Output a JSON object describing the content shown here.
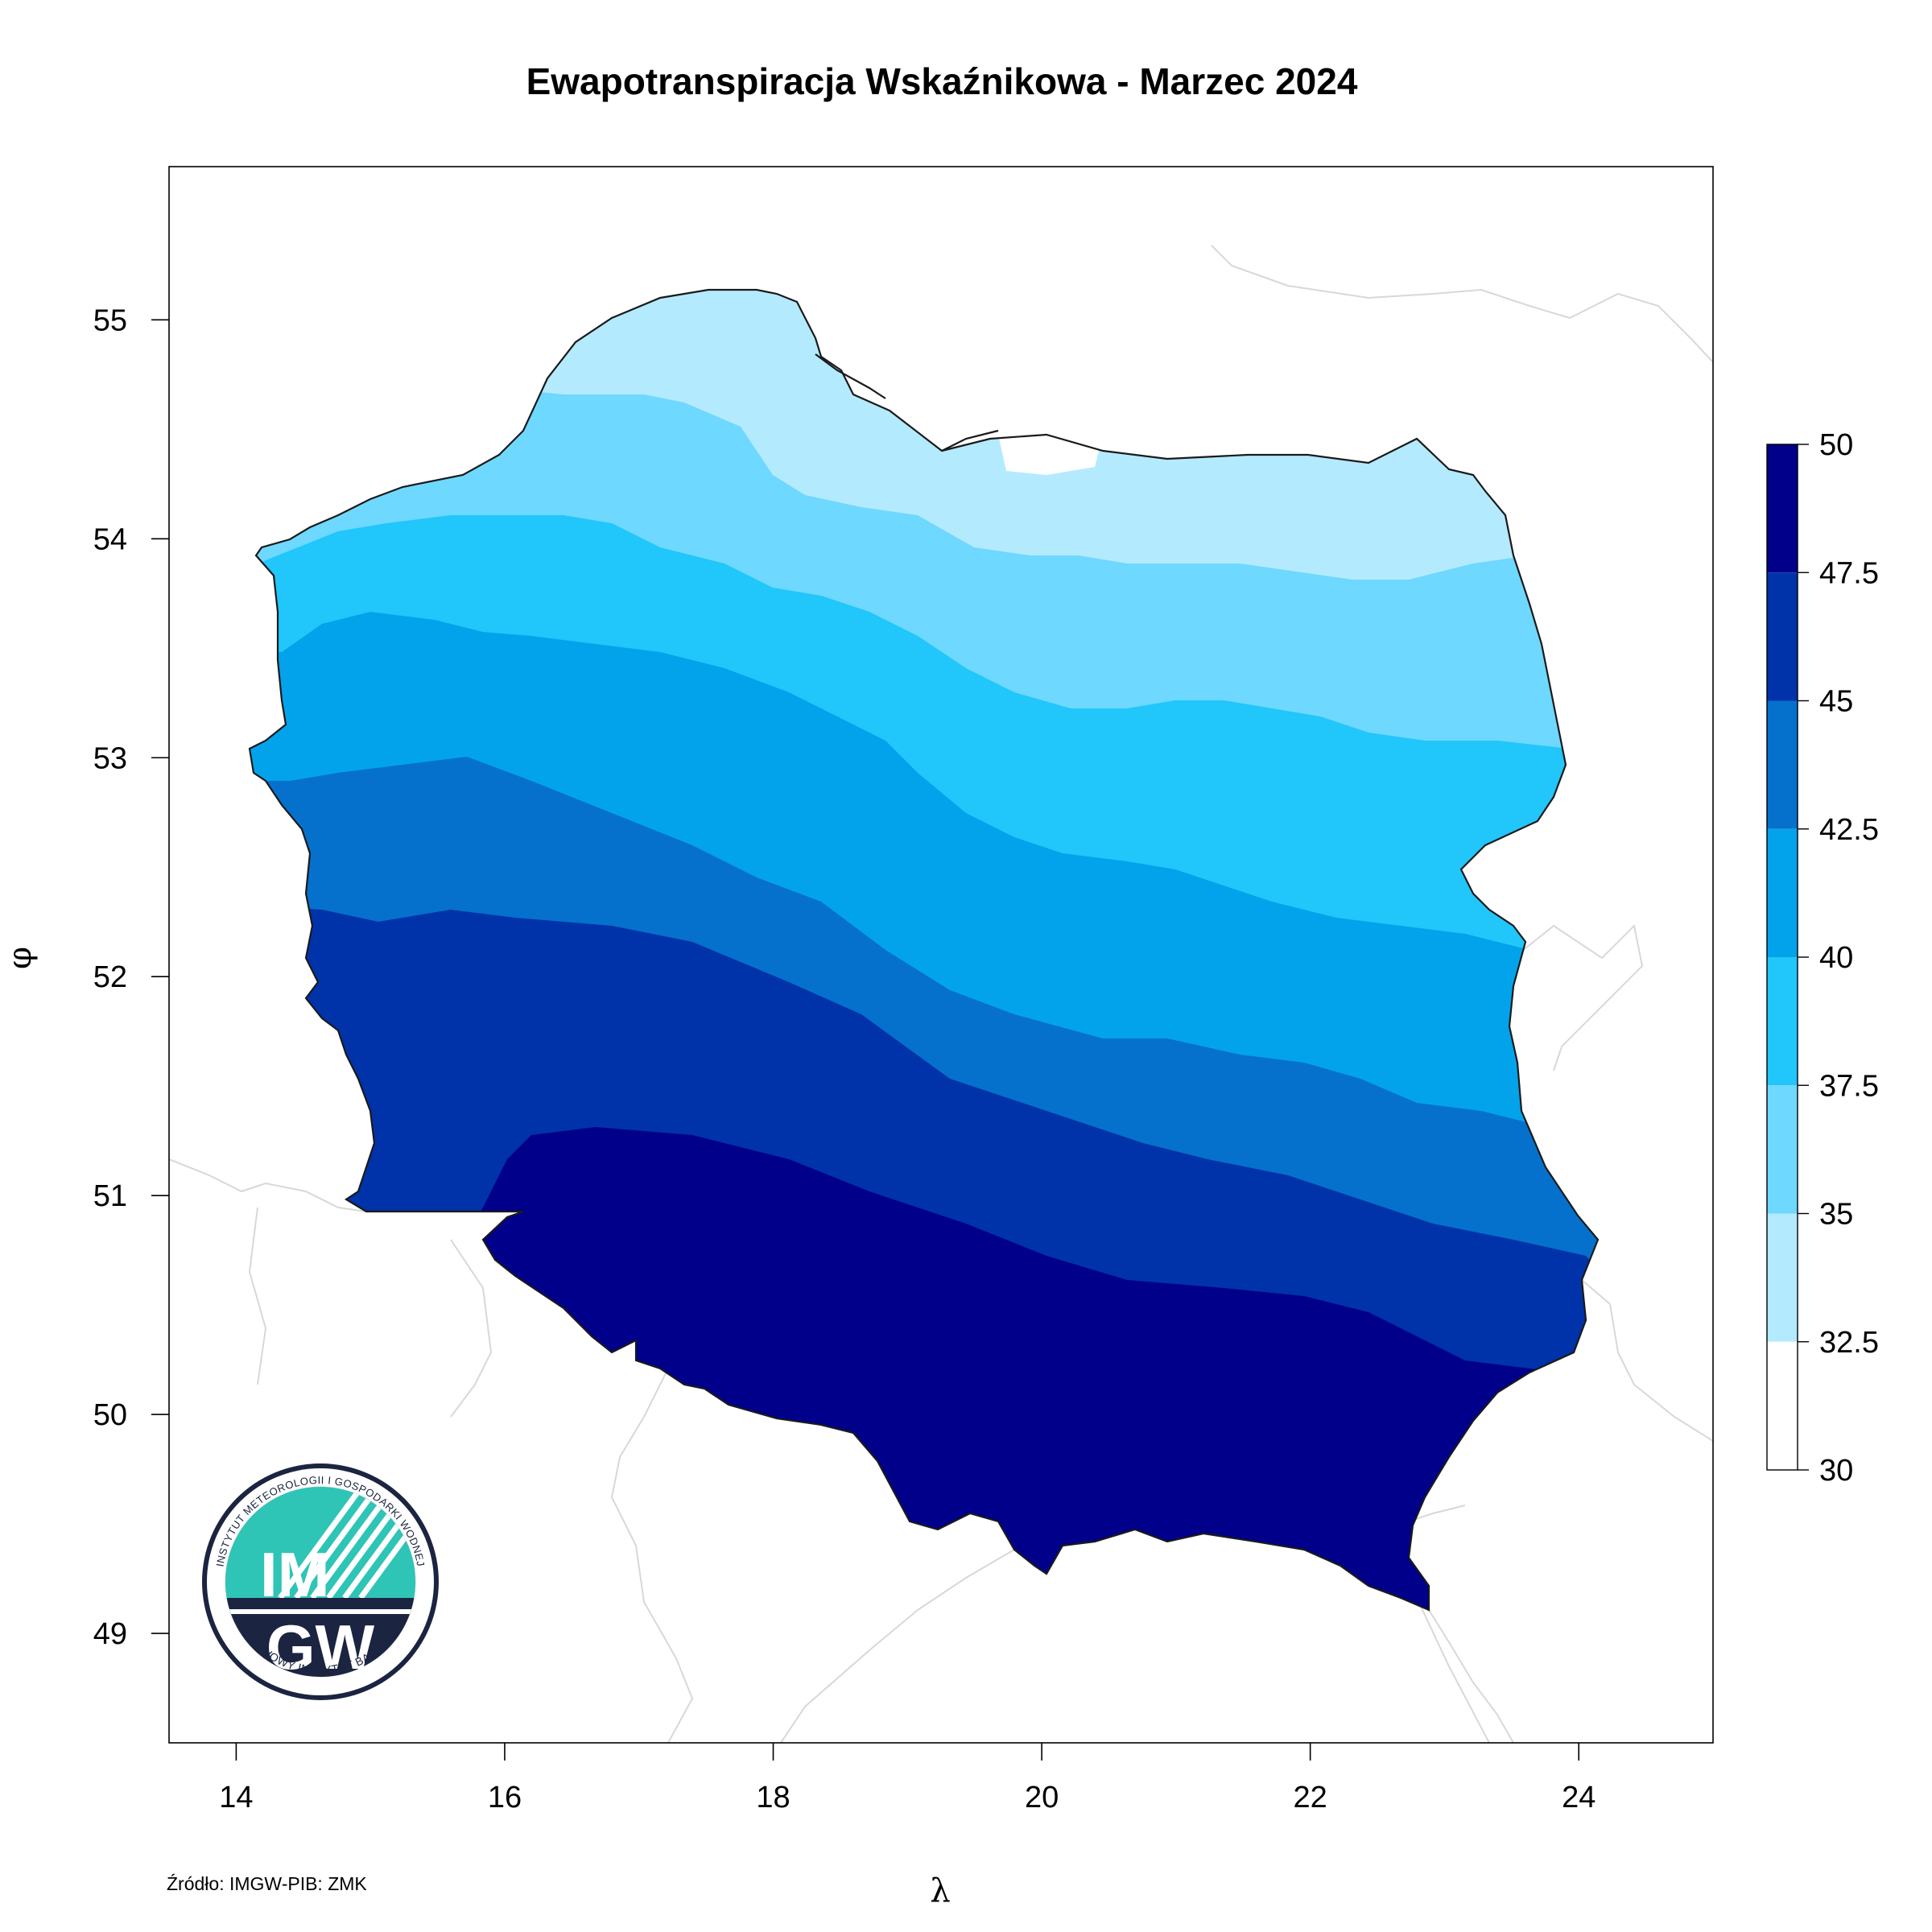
{
  "title": "Ewapotranspiracja Wskaźnikowa - Marzec 2024",
  "source": "Źródło: IMGW-PIB: ZMK",
  "x_axis": {
    "symbol": "λ",
    "ticks": [
      "14",
      "16",
      "18",
      "20",
      "22",
      "24"
    ],
    "range": [
      13.5,
      25
    ]
  },
  "y_axis": {
    "symbol": "φ",
    "ticks": [
      "49",
      "50",
      "51",
      "52",
      "53",
      "54",
      "55"
    ],
    "range": [
      48.5,
      55.7
    ]
  },
  "legend": {
    "labels": [
      "50",
      "47.5",
      "45",
      "42.5",
      "40",
      "37.5",
      "35",
      "32.5",
      "30"
    ],
    "bins": [
      {
        "from": 47.5,
        "to": 50,
        "color": "#00008B"
      },
      {
        "from": 45,
        "to": 47.5,
        "color": "#0033AA"
      },
      {
        "from": 42.5,
        "to": 45,
        "color": "#0571CC"
      },
      {
        "from": 40,
        "to": 42.5,
        "color": "#03A3EB"
      },
      {
        "from": 37.5,
        "to": 40,
        "color": "#21C6FB"
      },
      {
        "from": 35,
        "to": 37.5,
        "color": "#6ED8FE"
      },
      {
        "from": 32.5,
        "to": 35,
        "color": "#B4EAFE"
      },
      {
        "from": 30,
        "to": 32.5,
        "color": "#FFFFFF"
      }
    ]
  },
  "logo": {
    "text_top": "INSTYTUT METEOROLOGII I GOSPODARKI WODNEJ",
    "text_bottom": "PAŃSTWOWY INSTYTUT BADAWCZY",
    "im": "IM",
    "gw": "GW",
    "colors": {
      "teal": "#2EC4B6",
      "navy": "#1B2440"
    }
  }
}
